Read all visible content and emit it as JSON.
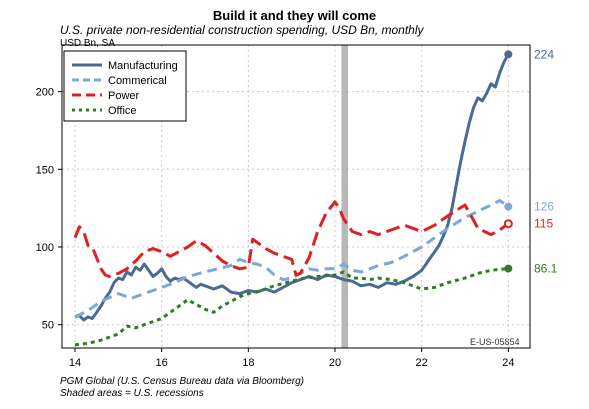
{
  "chart_data": {
    "type": "line",
    "title": "Build it and they will come",
    "subtitle": "U.S. private non-residential construction spending, USD Bn, monthly",
    "unit_label": "USD Bn, SA",
    "source": "PGM Global (U.S. Census Bureau data via Bloomberg)",
    "note": "Shaded areas = U.S. recessions",
    "code": "E-US-05854",
    "xlim": [
      13.7,
      24.5
    ],
    "ylim": [
      35,
      230
    ],
    "x_ticks": [
      14,
      16,
      18,
      20,
      22,
      24
    ],
    "y_ticks": [
      50,
      100,
      150,
      200
    ],
    "grid": true,
    "legend_position": "top-left",
    "recessions": [
      [
        20.15,
        20.3
      ]
    ],
    "series": [
      {
        "name": "Manufacturing",
        "color": "#4a6a94",
        "dash": "solid",
        "end_label": "224",
        "marker": "filled",
        "points": [
          [
            14.0,
            55
          ],
          [
            14.1,
            56
          ],
          [
            14.2,
            53
          ],
          [
            14.3,
            55
          ],
          [
            14.4,
            54
          ],
          [
            14.5,
            58
          ],
          [
            14.6,
            62
          ],
          [
            14.7,
            67
          ],
          [
            14.8,
            71
          ],
          [
            14.9,
            77
          ],
          [
            15.0,
            80
          ],
          [
            15.1,
            79
          ],
          [
            15.2,
            84
          ],
          [
            15.3,
            82
          ],
          [
            15.4,
            87
          ],
          [
            15.5,
            85
          ],
          [
            15.6,
            89
          ],
          [
            15.7,
            85
          ],
          [
            15.8,
            81
          ],
          [
            15.9,
            83
          ],
          [
            16.0,
            86
          ],
          [
            16.1,
            81
          ],
          [
            16.2,
            78
          ],
          [
            16.3,
            80
          ],
          [
            16.4,
            79
          ],
          [
            16.5,
            80
          ],
          [
            16.6,
            78
          ],
          [
            16.7,
            76
          ],
          [
            16.8,
            74
          ],
          [
            16.9,
            76
          ],
          [
            17.0,
            75
          ],
          [
            17.2,
            73
          ],
          [
            17.4,
            75
          ],
          [
            17.6,
            71
          ],
          [
            17.8,
            70
          ],
          [
            18.0,
            72
          ],
          [
            18.2,
            71
          ],
          [
            18.4,
            73
          ],
          [
            18.6,
            71
          ],
          [
            18.8,
            74
          ],
          [
            19.0,
            77
          ],
          [
            19.2,
            79
          ],
          [
            19.4,
            81
          ],
          [
            19.6,
            79
          ],
          [
            19.8,
            82
          ],
          [
            20.0,
            81
          ],
          [
            20.2,
            79
          ],
          [
            20.4,
            78
          ],
          [
            20.6,
            75
          ],
          [
            20.8,
            76
          ],
          [
            21.0,
            74
          ],
          [
            21.2,
            77
          ],
          [
            21.4,
            76
          ],
          [
            21.6,
            78
          ],
          [
            21.8,
            81
          ],
          [
            22.0,
            85
          ],
          [
            22.1,
            89
          ],
          [
            22.2,
            93
          ],
          [
            22.3,
            97
          ],
          [
            22.4,
            101
          ],
          [
            22.5,
            107
          ],
          [
            22.6,
            114
          ],
          [
            22.7,
            125
          ],
          [
            22.8,
            140
          ],
          [
            22.9,
            155
          ],
          [
            23.0,
            168
          ],
          [
            23.1,
            180
          ],
          [
            23.2,
            190
          ],
          [
            23.3,
            196
          ],
          [
            23.4,
            194
          ],
          [
            23.5,
            199
          ],
          [
            23.6,
            205
          ],
          [
            23.7,
            203
          ],
          [
            23.8,
            212
          ],
          [
            23.9,
            219
          ],
          [
            24.0,
            224
          ]
        ]
      },
      {
        "name": "Commerical",
        "color": "#7da7d8",
        "dash": "10,6",
        "end_label": "126",
        "marker": "filled",
        "points": [
          [
            14.0,
            55
          ],
          [
            14.3,
            59
          ],
          [
            14.6,
            65
          ],
          [
            15.0,
            70
          ],
          [
            15.3,
            67
          ],
          [
            15.6,
            70
          ],
          [
            16.0,
            74
          ],
          [
            16.3,
            77
          ],
          [
            16.6,
            81
          ],
          [
            17.0,
            84
          ],
          [
            17.3,
            86
          ],
          [
            17.6,
            88
          ],
          [
            17.8,
            92
          ],
          [
            18.0,
            90
          ],
          [
            18.2,
            89
          ],
          [
            18.4,
            87
          ],
          [
            18.6,
            82
          ],
          [
            18.8,
            79
          ],
          [
            19.0,
            80
          ],
          [
            19.2,
            83
          ],
          [
            19.4,
            86
          ],
          [
            19.6,
            85
          ],
          [
            19.8,
            86
          ],
          [
            20.0,
            86
          ],
          [
            20.2,
            89
          ],
          [
            20.4,
            85
          ],
          [
            20.6,
            84
          ],
          [
            20.8,
            86
          ],
          [
            21.0,
            88
          ],
          [
            21.3,
            90
          ],
          [
            21.6,
            94
          ],
          [
            22.0,
            100
          ],
          [
            22.3,
            106
          ],
          [
            22.6,
            112
          ],
          [
            23.0,
            119
          ],
          [
            23.3,
            123
          ],
          [
            23.6,
            127
          ],
          [
            23.8,
            130
          ],
          [
            24.0,
            126
          ]
        ]
      },
      {
        "name": "Power",
        "color": "#e02020",
        "dash": "14,6",
        "end_label": "115",
        "marker": "open",
        "points": [
          [
            14.0,
            106
          ],
          [
            14.1,
            113
          ],
          [
            14.2,
            110
          ],
          [
            14.3,
            101
          ],
          [
            14.4,
            100
          ],
          [
            14.5,
            93
          ],
          [
            14.6,
            86
          ],
          [
            14.7,
            82
          ],
          [
            14.8,
            81
          ],
          [
            14.9,
            82
          ],
          [
            15.0,
            83
          ],
          [
            15.2,
            86
          ],
          [
            15.4,
            91
          ],
          [
            15.6,
            97
          ],
          [
            15.8,
            99
          ],
          [
            16.0,
            97
          ],
          [
            16.2,
            94
          ],
          [
            16.4,
            97
          ],
          [
            16.6,
            100
          ],
          [
            16.8,
            104
          ],
          [
            17.0,
            101
          ],
          [
            17.2,
            96
          ],
          [
            17.4,
            91
          ],
          [
            17.6,
            88
          ],
          [
            17.8,
            86
          ],
          [
            18.0,
            87
          ],
          [
            18.1,
            105
          ],
          [
            18.2,
            103
          ],
          [
            18.4,
            99
          ],
          [
            18.6,
            96
          ],
          [
            18.8,
            94
          ],
          [
            19.0,
            92
          ],
          [
            19.1,
            82
          ],
          [
            19.2,
            83
          ],
          [
            19.4,
            93
          ],
          [
            19.6,
            110
          ],
          [
            19.8,
            122
          ],
          [
            20.0,
            129
          ],
          [
            20.1,
            125
          ],
          [
            20.2,
            118
          ],
          [
            20.4,
            110
          ],
          [
            20.6,
            108
          ],
          [
            20.8,
            110
          ],
          [
            21.0,
            108
          ],
          [
            21.3,
            111
          ],
          [
            21.6,
            114
          ],
          [
            22.0,
            110
          ],
          [
            22.3,
            114
          ],
          [
            22.6,
            120
          ],
          [
            23.0,
            127
          ],
          [
            23.3,
            112
          ],
          [
            23.6,
            108
          ],
          [
            23.8,
            111
          ],
          [
            24.0,
            115
          ]
        ]
      },
      {
        "name": "Office",
        "color": "#2e7d1e",
        "dash": "4,4",
        "end_label": "86.1",
        "marker": "filled",
        "points": [
          [
            14.0,
            37
          ],
          [
            14.3,
            38
          ],
          [
            14.6,
            40
          ],
          [
            15.0,
            44
          ],
          [
            15.2,
            49
          ],
          [
            15.4,
            48
          ],
          [
            15.6,
            50
          ],
          [
            16.0,
            54
          ],
          [
            16.3,
            60
          ],
          [
            16.6,
            66
          ],
          [
            16.8,
            63
          ],
          [
            17.0,
            60
          ],
          [
            17.2,
            58
          ],
          [
            17.4,
            62
          ],
          [
            17.6,
            65
          ],
          [
            17.8,
            68
          ],
          [
            18.0,
            70
          ],
          [
            18.3,
            72
          ],
          [
            18.6,
            75
          ],
          [
            19.0,
            78
          ],
          [
            19.3,
            80
          ],
          [
            19.6,
            81
          ],
          [
            20.0,
            82
          ],
          [
            20.2,
            84
          ],
          [
            20.4,
            80
          ],
          [
            20.6,
            80
          ],
          [
            20.8,
            79
          ],
          [
            21.0,
            80
          ],
          [
            21.3,
            79
          ],
          [
            21.6,
            77
          ],
          [
            22.0,
            73
          ],
          [
            22.3,
            74
          ],
          [
            22.6,
            77
          ],
          [
            23.0,
            80
          ],
          [
            23.3,
            83
          ],
          [
            23.6,
            85
          ],
          [
            24.0,
            86.1
          ]
        ]
      }
    ]
  }
}
